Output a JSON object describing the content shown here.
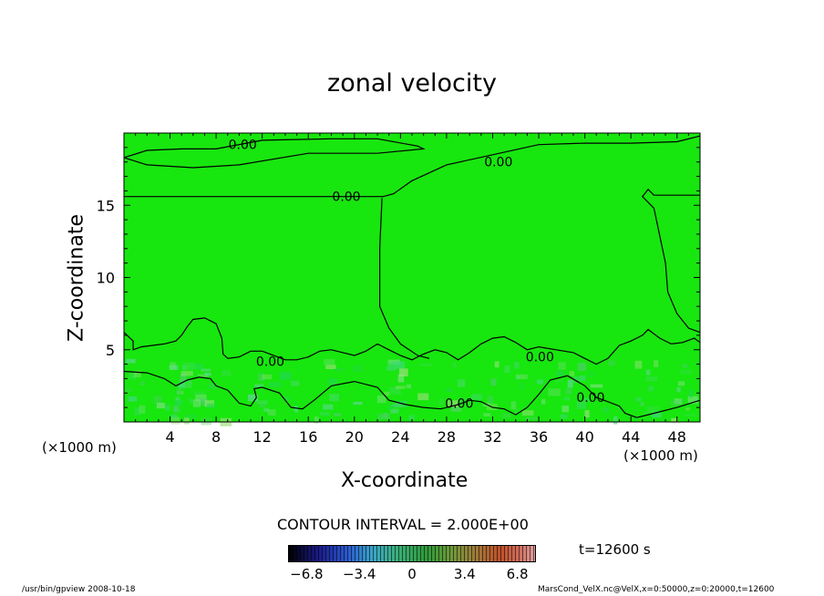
{
  "chart_data": {
    "type": "contour",
    "title": "zonal velocity",
    "xlabel": "X-coordinate",
    "ylabel": "Z-coordinate",
    "x_unit": "(×1000 m)",
    "xlim": [
      0,
      50
    ],
    "ylim": [
      0,
      20
    ],
    "x_ticks": [
      "4",
      "8",
      "12",
      "16",
      "20",
      "24",
      "28",
      "32",
      "36",
      "40",
      "44",
      "48"
    ],
    "y_ticks": [
      "5",
      "10",
      "15"
    ],
    "contour_interval_text": "CONTOUR INTERVAL = 2.000E+00",
    "contour_labels": [
      {
        "text": "0.00",
        "x": 10.3,
        "z": 19.2
      },
      {
        "text": "0.00",
        "x": 32.5,
        "z": 18.0
      },
      {
        "text": "0.00",
        "x": 19.3,
        "z": 15.6
      },
      {
        "text": "0.00",
        "x": 12.7,
        "z": 4.2
      },
      {
        "text": "0.00",
        "x": 36.1,
        "z": 4.5
      },
      {
        "text": "0.00",
        "x": 29.1,
        "z": 1.3
      },
      {
        "text": "0.00",
        "x": 40.5,
        "z": 1.7
      }
    ],
    "zero_contours": [
      [
        [
          0,
          15.6
        ],
        [
          22.5,
          15.6
        ],
        [
          23.4,
          15.8
        ],
        [
          25.0,
          16.7
        ],
        [
          28.0,
          17.8
        ],
        [
          32.0,
          18.5
        ],
        [
          36.0,
          19.2
        ],
        [
          40.0,
          19.3
        ],
        [
          44.0,
          19.3
        ],
        [
          48.0,
          19.4
        ],
        [
          50.0,
          19.8
        ]
      ],
      [
        [
          0,
          18.3
        ],
        [
          2.0,
          18.8
        ],
        [
          5.0,
          18.9
        ],
        [
          8.0,
          18.9
        ],
        [
          12.0,
          19.5
        ],
        [
          18.0,
          19.6
        ],
        [
          22.0,
          19.6
        ],
        [
          25.5,
          19.1
        ],
        [
          26.0,
          18.9
        ],
        [
          22.0,
          18.6
        ],
        [
          16.0,
          18.6
        ],
        [
          10.0,
          17.8
        ],
        [
          6.0,
          17.6
        ],
        [
          2.0,
          17.8
        ],
        [
          0,
          18.3
        ]
      ],
      [
        [
          22.4,
          15.5
        ],
        [
          22.2,
          12.0
        ],
        [
          22.2,
          8.0
        ],
        [
          23.0,
          6.5
        ],
        [
          24.0,
          5.4
        ],
        [
          25.5,
          4.6
        ],
        [
          26.5,
          4.4
        ]
      ],
      [
        [
          50.0,
          15.7
        ],
        [
          46.0,
          15.7
        ],
        [
          45.5,
          16.1
        ],
        [
          45.0,
          15.6
        ],
        [
          46.0,
          14.8
        ],
        [
          47.0,
          11.0
        ],
        [
          47.2,
          9.0
        ],
        [
          48.0,
          7.5
        ],
        [
          49.0,
          6.5
        ],
        [
          50.0,
          6.2
        ]
      ],
      [
        [
          0,
          6.2
        ],
        [
          0.8,
          5.6
        ],
        [
          0.8,
          5.0
        ],
        [
          1.5,
          5.2
        ],
        [
          2.5,
          5.3
        ],
        [
          3.5,
          5.4
        ],
        [
          4.5,
          5.6
        ],
        [
          5.0,
          6.0
        ],
        [
          5.5,
          6.6
        ],
        [
          6.0,
          7.1
        ],
        [
          7.0,
          7.2
        ],
        [
          8.0,
          6.8
        ],
        [
          8.5,
          5.8
        ],
        [
          8.6,
          4.7
        ],
        [
          9.0,
          4.4
        ],
        [
          10.0,
          4.5
        ],
        [
          11.0,
          4.9
        ],
        [
          12.0,
          4.9
        ],
        [
          13.0,
          4.6
        ],
        [
          14.0,
          4.3
        ],
        [
          15.0,
          4.3
        ],
        [
          16.0,
          4.5
        ],
        [
          17.0,
          4.9
        ],
        [
          18.0,
          5.0
        ],
        [
          19.0,
          4.8
        ],
        [
          20.0,
          4.6
        ],
        [
          21.0,
          4.9
        ],
        [
          22.0,
          5.4
        ],
        [
          23.0,
          5.0
        ],
        [
          24.0,
          4.6
        ],
        [
          25.0,
          4.3
        ],
        [
          26.0,
          4.7
        ],
        [
          27.0,
          5.0
        ],
        [
          28.0,
          4.8
        ],
        [
          29.0,
          4.3
        ],
        [
          30.0,
          4.8
        ],
        [
          31.0,
          5.4
        ],
        [
          32.0,
          5.8
        ],
        [
          33.0,
          5.9
        ],
        [
          34.0,
          5.5
        ],
        [
          35.0,
          5.0
        ],
        [
          36.0,
          5.2
        ],
        [
          37.5,
          5.0
        ],
        [
          39.0,
          4.8
        ],
        [
          40.0,
          4.4
        ],
        [
          41.0,
          4.0
        ],
        [
          42.0,
          4.4
        ],
        [
          43.0,
          5.3
        ],
        [
          44.0,
          5.6
        ],
        [
          45.0,
          6.0
        ],
        [
          45.5,
          6.4
        ],
        [
          46.5,
          5.8
        ],
        [
          47.5,
          5.4
        ],
        [
          48.5,
          5.5
        ],
        [
          49.5,
          5.8
        ],
        [
          50.0,
          5.5
        ]
      ],
      [
        [
          0,
          3.5
        ],
        [
          2.0,
          3.4
        ],
        [
          3.5,
          3.0
        ],
        [
          4.5,
          2.5
        ],
        [
          5.5,
          2.9
        ],
        [
          6.5,
          3.1
        ],
        [
          7.5,
          3.0
        ],
        [
          8.0,
          2.5
        ],
        [
          9.0,
          2.2
        ],
        [
          10.0,
          1.3
        ],
        [
          11.0,
          1.1
        ],
        [
          11.5,
          1.7
        ],
        [
          11.3,
          2.3
        ],
        [
          12.0,
          2.4
        ],
        [
          13.5,
          2.0
        ],
        [
          14.5,
          1.0
        ],
        [
          15.5,
          0.9
        ],
        [
          16.5,
          1.5
        ],
        [
          18.0,
          2.5
        ],
        [
          20.0,
          2.8
        ],
        [
          22.0,
          2.4
        ],
        [
          23.0,
          1.5
        ],
        [
          24.5,
          1.2
        ],
        [
          26.0,
          1.0
        ],
        [
          27.5,
          0.9
        ],
        [
          29.0,
          1.2
        ],
        [
          30.0,
          1.5
        ],
        [
          31.0,
          1.4
        ],
        [
          32.0,
          1.0
        ],
        [
          33.0,
          0.9
        ],
        [
          34.0,
          0.5
        ],
        [
          35.0,
          1.0
        ],
        [
          36.0,
          1.9
        ],
        [
          37.0,
          2.9
        ],
        [
          38.5,
          3.2
        ],
        [
          40.0,
          2.5
        ],
        [
          41.0,
          1.7
        ],
        [
          42.0,
          1.4
        ],
        [
          43.0,
          1.1
        ],
        [
          43.5,
          0.6
        ],
        [
          44.5,
          0.3
        ],
        [
          46.0,
          0.6
        ],
        [
          48.0,
          1.0
        ],
        [
          50.0,
          1.5
        ]
      ]
    ]
  },
  "colorbar": {
    "ticks": [
      "−6.8",
      "−3.4",
      "0",
      "3.4",
      "6.8"
    ],
    "tick_values": [
      -6.8,
      -3.4,
      0,
      3.4,
      6.8
    ],
    "range": [
      -8,
      8
    ]
  },
  "fill_color": "#18e60f",
  "time_label": "t=12600 s",
  "footer_left": "/usr/bin/gpview   2008-10-18",
  "footer_right": "MarsCond_VelX.nc@VelX,x=0:50000,z=0:20000,t=12600"
}
